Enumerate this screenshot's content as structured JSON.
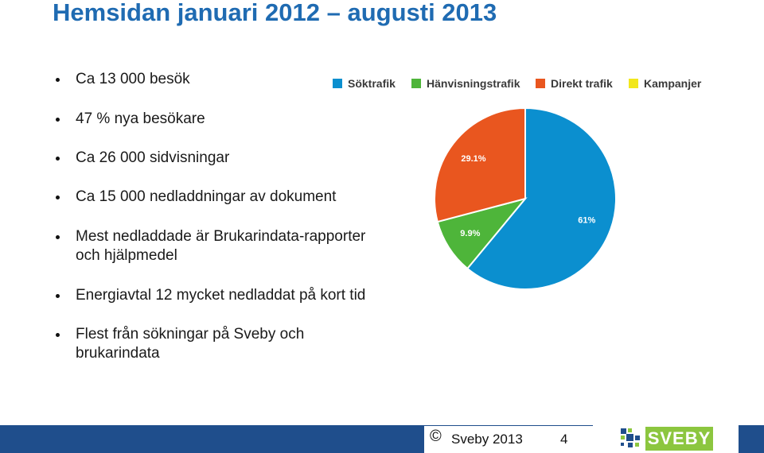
{
  "slide": {
    "title": "Hemsidan januari 2012 – augusti 2013",
    "bullets": [
      {
        "line1": "Ca 13 000 besök",
        "line2": ""
      },
      {
        "line1": "47 % nya besökare",
        "line2": ""
      },
      {
        "line1": "Ca 26 000 sidvisningar",
        "line2": ""
      },
      {
        "line1": "Ca 15 000 nedladdningar av dokument",
        "line2": ""
      },
      {
        "line1": "Mest nedladdade är Brukarindata-rapporter",
        "line2": "och hjälpmedel"
      },
      {
        "line1": "Energiavtal 12 mycket nedladdat på kort tid",
        "line2": ""
      },
      {
        "line1": "Flest från sökningar på Sveby och",
        "line2": "brukarindata"
      }
    ]
  },
  "chart_data": {
    "type": "pie",
    "title": "",
    "legend_position": "top",
    "series": [
      {
        "name": "Söktrafik",
        "value": 61,
        "label": "61%",
        "color": "#0b8fcf"
      },
      {
        "name": "Hänvisningstrafik",
        "value": 9.9,
        "label": "9.9%",
        "color": "#4eb53a"
      },
      {
        "name": "Direkt trafik",
        "value": 29.1,
        "label": "29.1%",
        "color": "#e9561f"
      },
      {
        "name": "Kampanjer",
        "value": 0,
        "label": "",
        "color": "#f2e71c"
      }
    ]
  },
  "footer": {
    "copyright": "©",
    "company": "Sveby 2013",
    "page_number": "4",
    "logo_text": "SVEBY",
    "bar_color": "#1f4e8c",
    "logo_color": "#8cc63f"
  }
}
